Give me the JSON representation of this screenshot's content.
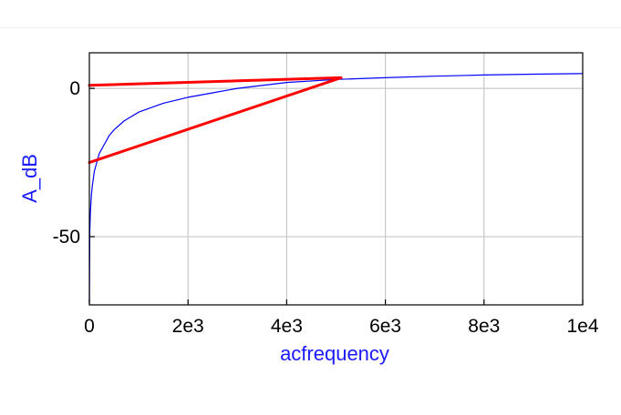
{
  "chart_data": {
    "type": "line",
    "title": "",
    "xlabel": "acfrequency",
    "ylabel": "A_dB",
    "xlim": [
      0,
      10000
    ],
    "ylim": [
      -73,
      12
    ],
    "x_ticks": [
      "0",
      "2e3",
      "4e3",
      "6e3",
      "8e3",
      "1e4"
    ],
    "x_tick_values": [
      0,
      2000,
      4000,
      6000,
      8000,
      10000
    ],
    "y_ticks": [
      "0",
      "-50"
    ],
    "y_tick_values": [
      0,
      -50
    ],
    "grid": true,
    "series": [
      {
        "color": "#0000ff",
        "style": "thin-line",
        "x": [
          0,
          10,
          20,
          40,
          60,
          100,
          150,
          200,
          300,
          400,
          500,
          700,
          1000,
          1500,
          2000,
          2500,
          3000,
          4000,
          5000,
          6000,
          7000,
          8000,
          9000,
          10000
        ],
        "y": [
          -72,
          -48,
          -42,
          -36,
          -33,
          -28,
          -25,
          -22,
          -19,
          -16,
          -14,
          -11,
          -8,
          -5,
          -3,
          -1.5,
          0,
          2,
          3,
          3.6,
          4.1,
          4.5,
          4.8,
          5
        ]
      },
      {
        "color": "#ff0000",
        "style": "thick-line",
        "x": [
          0,
          5100
        ],
        "y": [
          1,
          3.6
        ]
      },
      {
        "color": "#ff0000",
        "style": "thick-line",
        "x": [
          0,
          5100
        ],
        "y": [
          -25,
          3.6
        ]
      }
    ]
  }
}
